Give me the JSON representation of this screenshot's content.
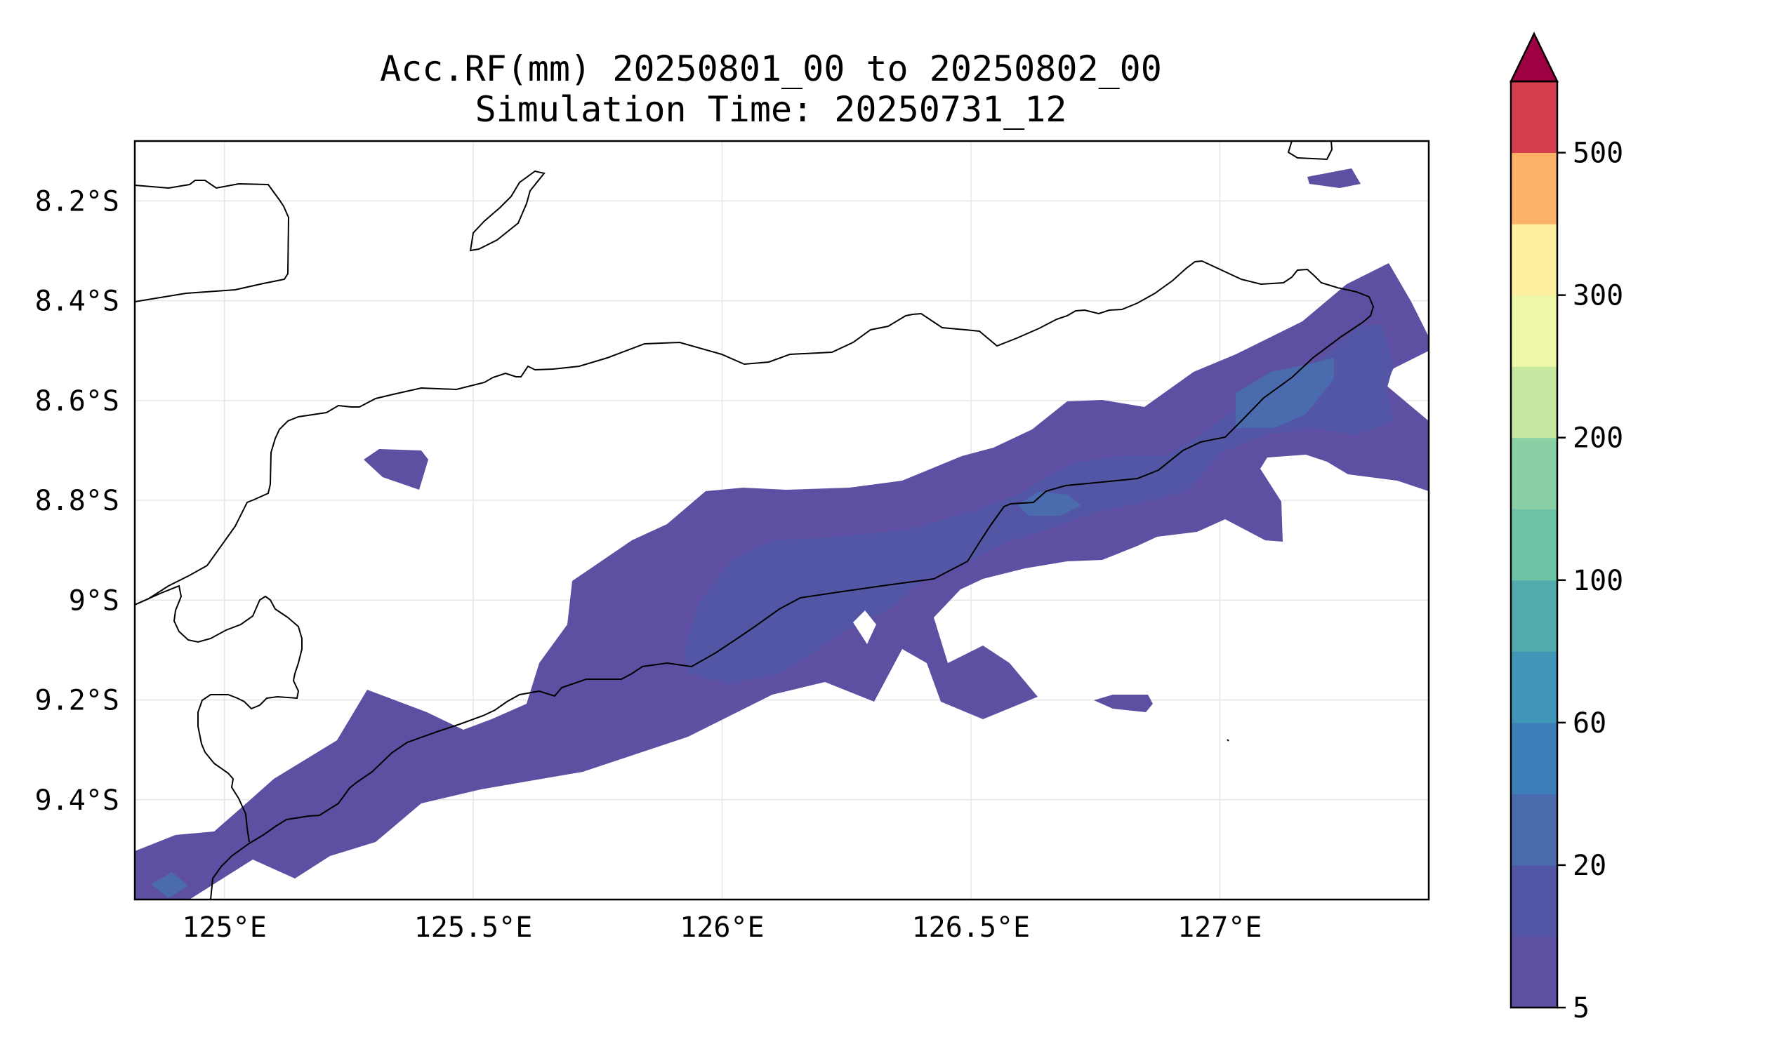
{
  "title_line1": "Acc.RF(mm) 20250801_00 to 20250802_00",
  "title_line2": "Simulation Time: 20250731_12",
  "map": {
    "lon_range": [
      124.82,
      127.42
    ],
    "lat_range": [
      -9.6,
      -8.08
    ],
    "lon_ticks": [
      {
        "value": 125.0,
        "label": "125°E"
      },
      {
        "value": 125.5,
        "label": "125.5°E"
      },
      {
        "value": 126.0,
        "label": "126°E"
      },
      {
        "value": 126.5,
        "label": "126.5°E"
      },
      {
        "value": 127.0,
        "label": "127°E"
      }
    ],
    "lat_ticks": [
      {
        "value": -8.2,
        "label": "8.2°S"
      },
      {
        "value": -8.4,
        "label": "8.4°S"
      },
      {
        "value": -8.6,
        "label": "8.6°S"
      },
      {
        "value": -8.8,
        "label": "8.8°S"
      },
      {
        "value": -9.0,
        "label": "9°S"
      },
      {
        "value": -9.2,
        "label": "9.2°S"
      },
      {
        "value": -9.4,
        "label": "9.4°S"
      }
    ],
    "grid": true,
    "coastline_color": "#000000"
  },
  "colorbar": {
    "levels": [
      5,
      10,
      20,
      40,
      60,
      80,
      100,
      150,
      200,
      250,
      300,
      350,
      500
    ],
    "tick_labels": [
      "5",
      "20",
      "60",
      "100",
      "200",
      "300",
      "500"
    ],
    "colors": [
      "#5e4fa2",
      "#5356a4",
      "#4a6bad",
      "#3d80b9",
      "#3f96b7",
      "#52acac",
      "#6cc4a4",
      "#89d0a4",
      "#c4e8a0",
      "#eff8a8",
      "#fdeea0",
      "#fcb266",
      "#d53e4f"
    ],
    "extend_color": "#9e0142",
    "extend": "max"
  }
}
